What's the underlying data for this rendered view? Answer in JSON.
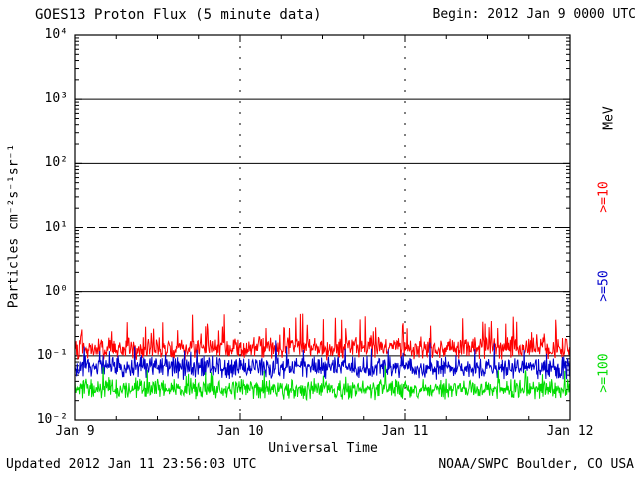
{
  "header": {
    "title": "GOES13 Proton Flux (5 minute data)",
    "begin_label": "Begin: 2012 Jan 9 0000 UTC"
  },
  "footer": {
    "updated": "Updated 2012 Jan 11 23:56:03 UTC",
    "source": "NOAA/SWPC Boulder, CO USA"
  },
  "chart_data": {
    "type": "line",
    "title": "GOES13 Proton Flux (5 minute data)",
    "xlabel": "Universal Time",
    "ylabel": "Particles cm⁻²s⁻¹sr⁻¹",
    "right_axis_unit": "MeV",
    "x_ticks": [
      "Jan 9",
      "Jan 10",
      "Jan 11",
      "Jan 12"
    ],
    "y_ticks": [
      "10⁴",
      "10³",
      "10²",
      "10¹",
      "10⁰",
      "10⁻¹",
      "10⁻²"
    ],
    "y_range_log10": [
      -2,
      4
    ],
    "x_range_days": [
      0,
      3
    ],
    "grid_solid_log10": [
      3,
      2,
      0,
      -1
    ],
    "grid_dashed_log10": [
      1
    ],
    "grid_vertical_days": [
      1,
      2
    ],
    "legend_position": "right",
    "series": [
      {
        "name": ">=10",
        "color": "#ff0000",
        "n_points": 864,
        "cadence_minutes": 5,
        "approx_flux_range": [
          0.08,
          0.5
        ],
        "log10_mean": -0.88,
        "log10_jitter": 0.2,
        "spike_prob": 0.1,
        "spike_max": 0.45,
        "seed": 101
      },
      {
        "name": ">=50",
        "color": "#0000cc",
        "n_points": 864,
        "cadence_minutes": 5,
        "approx_flux_range": [
          0.04,
          0.2
        ],
        "log10_mean": -1.18,
        "log10_jitter": 0.2,
        "spike_prob": 0.08,
        "spike_max": 0.35,
        "seed": 202
      },
      {
        "name": ">=100",
        "color": "#00dd00",
        "n_points": 864,
        "cadence_minutes": 5,
        "approx_flux_range": [
          0.018,
          0.07
        ],
        "log10_mean": -1.52,
        "log10_jitter": 0.18,
        "spike_prob": 0.06,
        "spike_max": 0.28,
        "seed": 303
      }
    ]
  }
}
